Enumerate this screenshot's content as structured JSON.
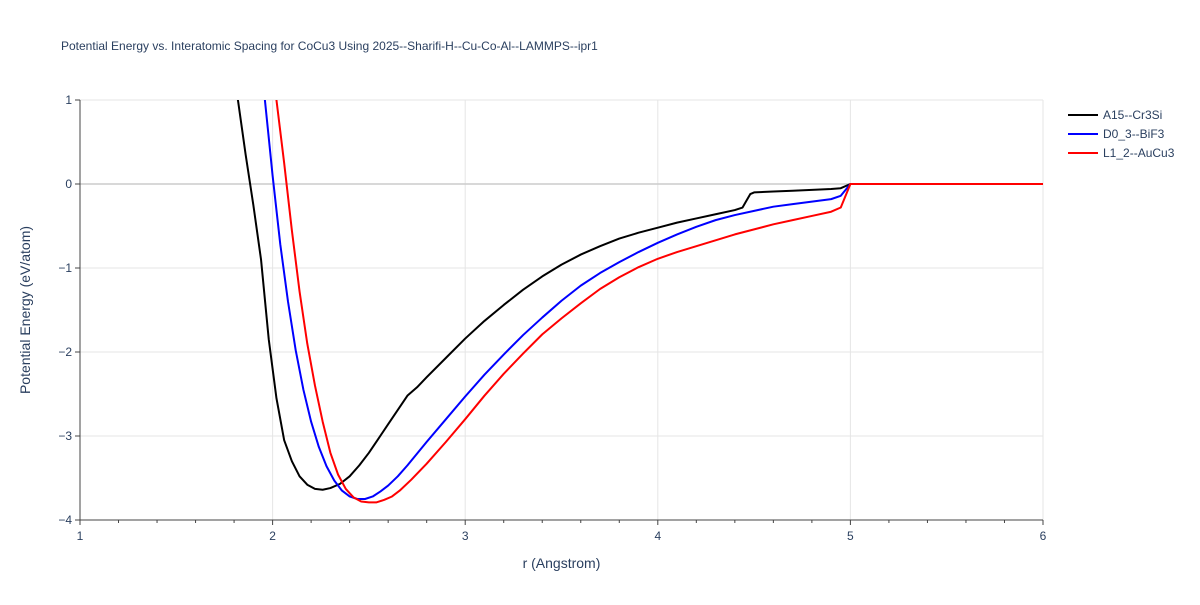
{
  "chart_data": {
    "type": "line",
    "title": "Potential Energy vs. Interatomic Spacing for CoCu3 Using 2025--Sharifi-H--Cu-Co-Al--LAMMPS--ipr1",
    "xlabel": "r (Angstrom)",
    "ylabel": "Potential Energy (eV/atom)",
    "xlim": [
      1,
      6
    ],
    "ylim": [
      -4,
      1
    ],
    "xticks": [
      1,
      2,
      3,
      4,
      5,
      6
    ],
    "xtick_labels": [
      "1",
      "2",
      "3",
      "4",
      "5",
      "6"
    ],
    "yticks": [
      -4,
      -3,
      -2,
      -1,
      0,
      1
    ],
    "ytick_labels": [
      "−4",
      "−3",
      "−2",
      "−1",
      "0",
      "1"
    ],
    "grid": true,
    "legend_position": "top-right",
    "series": [
      {
        "name": "A15--Cr3Si",
        "color": "#000000",
        "x": [
          1.82,
          1.86,
          1.9,
          1.94,
          1.98,
          2.02,
          2.06,
          2.1,
          2.14,
          2.18,
          2.22,
          2.26,
          2.3,
          2.35,
          2.4,
          2.45,
          2.5,
          2.55,
          2.6,
          2.65,
          2.7,
          2.75,
          2.8,
          2.9,
          3.0,
          3.1,
          3.2,
          3.3,
          3.4,
          3.5,
          3.6,
          3.7,
          3.8,
          3.9,
          4.0,
          4.1,
          4.2,
          4.3,
          4.4,
          4.44,
          4.46,
          4.48,
          4.5,
          4.6,
          4.7,
          4.8,
          4.9,
          4.95,
          5.0,
          5.1,
          5.3,
          5.5,
          5.7,
          5.9,
          6.0
        ],
        "y": [
          1.0,
          0.35,
          -0.25,
          -0.9,
          -1.85,
          -2.55,
          -3.05,
          -3.3,
          -3.48,
          -3.58,
          -3.63,
          -3.64,
          -3.62,
          -3.57,
          -3.48,
          -3.35,
          -3.2,
          -3.03,
          -2.86,
          -2.69,
          -2.52,
          -2.42,
          -2.3,
          -2.07,
          -1.84,
          -1.63,
          -1.44,
          -1.26,
          -1.1,
          -0.96,
          -0.84,
          -0.74,
          -0.65,
          -0.58,
          -0.52,
          -0.46,
          -0.41,
          -0.36,
          -0.31,
          -0.28,
          -0.2,
          -0.12,
          -0.1,
          -0.09,
          -0.08,
          -0.07,
          -0.06,
          -0.05,
          0.0,
          0.0,
          0.0,
          0.0,
          0.0,
          0.0,
          0.0
        ]
      },
      {
        "name": "D0_3--BiF3",
        "color": "#0000ff",
        "x": [
          1.96,
          2.0,
          2.04,
          2.08,
          2.12,
          2.16,
          2.2,
          2.24,
          2.28,
          2.32,
          2.36,
          2.4,
          2.44,
          2.48,
          2.52,
          2.56,
          2.6,
          2.65,
          2.7,
          2.8,
          2.9,
          3.0,
          3.1,
          3.2,
          3.3,
          3.4,
          3.5,
          3.6,
          3.7,
          3.8,
          3.9,
          4.0,
          4.1,
          4.2,
          4.3,
          4.4,
          4.5,
          4.6,
          4.7,
          4.8,
          4.9,
          4.95,
          5.0,
          5.2,
          5.4,
          5.6,
          5.8,
          6.0
        ],
        "y": [
          1.0,
          0.1,
          -0.72,
          -1.4,
          -1.98,
          -2.45,
          -2.83,
          -3.13,
          -3.36,
          -3.53,
          -3.65,
          -3.72,
          -3.75,
          -3.75,
          -3.72,
          -3.66,
          -3.59,
          -3.48,
          -3.35,
          -3.07,
          -2.8,
          -2.53,
          -2.27,
          -2.03,
          -1.8,
          -1.59,
          -1.39,
          -1.21,
          -1.06,
          -0.93,
          -0.81,
          -0.7,
          -0.6,
          -0.51,
          -0.43,
          -0.37,
          -0.32,
          -0.27,
          -0.24,
          -0.21,
          -0.18,
          -0.14,
          0.0,
          0.0,
          0.0,
          0.0,
          0.0,
          0.0
        ]
      },
      {
        "name": "L1_2--AuCu3",
        "color": "#ff0000",
        "x": [
          2.02,
          2.06,
          2.1,
          2.14,
          2.18,
          2.22,
          2.26,
          2.3,
          2.34,
          2.38,
          2.42,
          2.46,
          2.5,
          2.54,
          2.58,
          2.62,
          2.66,
          2.72,
          2.8,
          2.9,
          3.0,
          3.1,
          3.2,
          3.3,
          3.4,
          3.5,
          3.6,
          3.7,
          3.8,
          3.9,
          4.0,
          4.1,
          4.2,
          4.3,
          4.4,
          4.5,
          4.6,
          4.7,
          4.8,
          4.9,
          4.95,
          5.0,
          5.2,
          5.4,
          5.6,
          5.8,
          6.0
        ],
        "y": [
          1.0,
          0.25,
          -0.55,
          -1.28,
          -1.9,
          -2.4,
          -2.83,
          -3.2,
          -3.46,
          -3.63,
          -3.73,
          -3.78,
          -3.79,
          -3.79,
          -3.76,
          -3.72,
          -3.65,
          -3.52,
          -3.33,
          -3.07,
          -2.8,
          -2.52,
          -2.26,
          -2.02,
          -1.79,
          -1.6,
          -1.42,
          -1.25,
          -1.11,
          -0.99,
          -0.89,
          -0.81,
          -0.74,
          -0.67,
          -0.6,
          -0.54,
          -0.48,
          -0.43,
          -0.38,
          -0.33,
          -0.28,
          0.0,
          0.0,
          0.0,
          0.0,
          0.0,
          0.0
        ]
      }
    ]
  }
}
